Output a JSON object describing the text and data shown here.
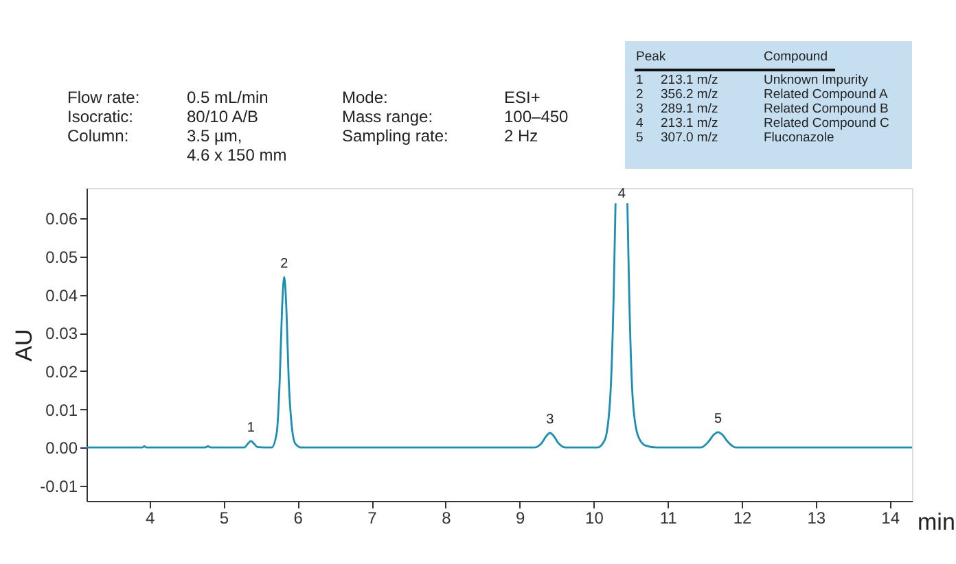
{
  "chart_data": {
    "type": "line",
    "xlabel": "min",
    "ylabel": "AU",
    "x": [
      3.15,
      3.9,
      3.93,
      3.96,
      4.75,
      4.79,
      4.83,
      5.28,
      5.33,
      5.37,
      5.41,
      5.46,
      5.65,
      5.72,
      5.76,
      5.79,
      5.82,
      5.85,
      5.88,
      5.92,
      5.97,
      6.05,
      9.2,
      9.3,
      9.36,
      9.41,
      9.46,
      9.52,
      9.62,
      10.05,
      10.15,
      10.22,
      10.27,
      10.295,
      10.31,
      10.44,
      10.455,
      10.48,
      10.53,
      10.6,
      10.7,
      10.85,
      11.45,
      11.55,
      11.62,
      11.68,
      11.74,
      11.81,
      11.92,
      14.3
    ],
    "series": [
      {
        "color": "#1a8fb5",
        "values": [
          0,
          0,
          0.0003,
          0,
          0,
          0.0003,
          0,
          0,
          0.001,
          0.0017,
          0.001,
          0.0001,
          0,
          0.004,
          0.018,
          0.036,
          0.0447,
          0.036,
          0.018,
          0.006,
          0.001,
          0,
          0,
          0.0012,
          0.003,
          0.0038,
          0.003,
          0.0012,
          0,
          0,
          0.002,
          0.012,
          0.04,
          0.064,
          null,
          null,
          0.064,
          0.04,
          0.012,
          0.003,
          0.0005,
          0,
          0,
          0.0015,
          0.0033,
          0.004,
          0.0033,
          0.0015,
          0,
          0
        ]
      }
    ],
    "xlim": [
      3.15,
      14.3
    ],
    "xticks": [
      4,
      5,
      6,
      7,
      8,
      9,
      10,
      11,
      12,
      13,
      14
    ],
    "ylim": [
      -0.014,
      0.068
    ],
    "yticks": [
      {
        "value": -0.01,
        "label": "-0.01"
      },
      {
        "value": 0,
        "label": "0.00"
      },
      {
        "value": 0.01,
        "label": "0.01"
      },
      {
        "value": 0.02,
        "label": "0.02"
      },
      {
        "value": 0.03,
        "label": "0.03"
      },
      {
        "value": 0.04,
        "label": "0.04"
      },
      {
        "value": 0.05,
        "label": "0.05"
      },
      {
        "value": 0.06,
        "label": "0.06"
      }
    ],
    "grid": false,
    "marker": "none",
    "line_style": "solid",
    "annotations": [
      "Flow rate:",
      "0.5 mL/min",
      "Mode:",
      "ESI+",
      "Isocratic:",
      "80/10 A/B",
      "Mass range:",
      "100–450",
      "Column:",
      "3.5 µm,\n4.6 x 150 mm",
      "Sampling rate:",
      "2 Hz",
      "Peak",
      "Compound",
      "1",
      "213.1 m/z",
      "Unknown Impurity",
      "2",
      "356.2 m/z",
      "Related Compound A",
      "3",
      "289.1 m/z",
      "Related Compound B",
      "4",
      "213.1 m/z",
      "Related Compound C",
      "5",
      "307.0 m/z",
      "Fluconazole",
      {
        "text": "1",
        "x": 5.37,
        "y": 0.0017
      },
      {
        "text": "2",
        "x": 5.82,
        "y": 0.0447
      },
      {
        "text": "3",
        "x": 9.41,
        "y": 0.0038
      },
      {
        "text": "4",
        "x": 10.38,
        "y": 0.063
      },
      {
        "text": "5",
        "x": 11.68,
        "y": 0.004
      }
    ]
  }
}
